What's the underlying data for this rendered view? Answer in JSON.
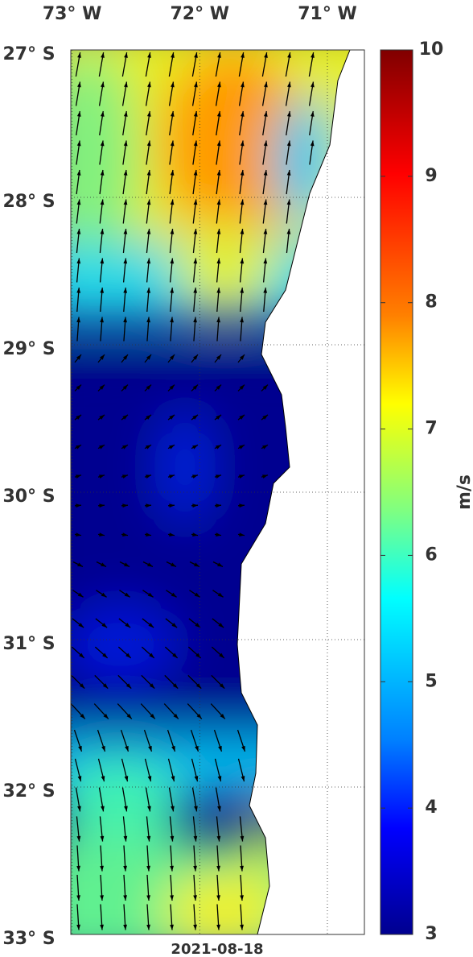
{
  "map": {
    "type": "map",
    "xlim": [
      -73.01,
      -70.71
    ],
    "ylim": [
      -33,
      -27
    ],
    "xticks": [
      {
        "value": -73,
        "label": "73° W"
      },
      {
        "value": -72,
        "label": "72° W"
      },
      {
        "value": -71,
        "label": "71° W"
      }
    ],
    "yticks": [
      {
        "value": -27,
        "label": "27° S"
      },
      {
        "value": -28,
        "label": "28° S"
      },
      {
        "value": -29,
        "label": "29° S"
      },
      {
        "value": -30,
        "label": "30° S"
      },
      {
        "value": -31,
        "label": "31° S"
      },
      {
        "value": -32,
        "label": "32° S"
      },
      {
        "value": -33,
        "label": "33° S"
      }
    ],
    "grid": true,
    "date": "2021-08-18",
    "colorbar": {
      "label": "m/s",
      "lim": [
        3,
        10
      ],
      "ticks": [
        3,
        4,
        5,
        6,
        7,
        8,
        9,
        10
      ],
      "colormap": "jet"
    }
  }
}
